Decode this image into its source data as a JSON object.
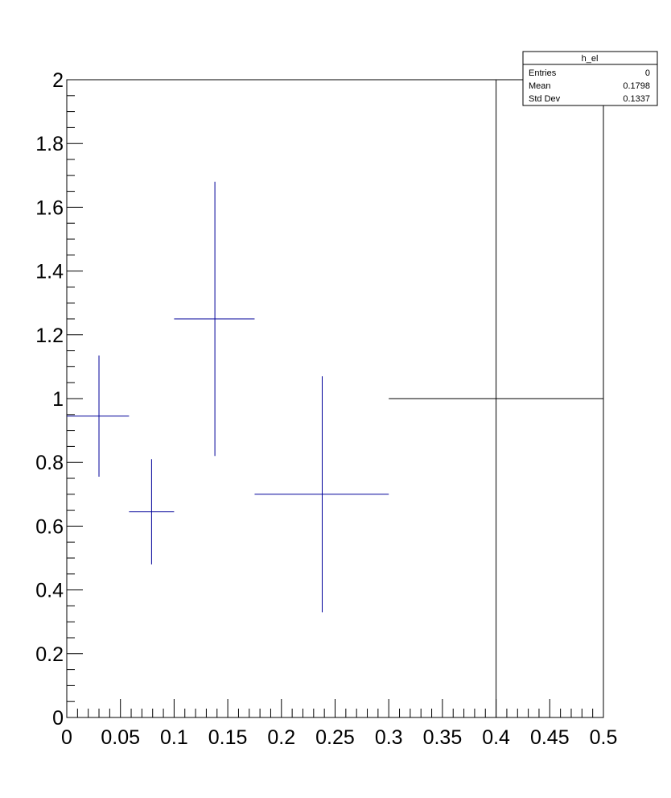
{
  "stats_box": {
    "title": "h_el",
    "rows": [
      {
        "label": "Entries",
        "value": "0"
      },
      {
        "label": "Mean",
        "value": "0.1798"
      },
      {
        "label": "Std Dev",
        "value": "0.1337"
      }
    ]
  },
  "chart_data": {
    "type": "scatter",
    "title": "",
    "xlabel": "",
    "ylabel": "",
    "xlim": [
      0,
      0.5
    ],
    "ylim": [
      0,
      2
    ],
    "grid": false,
    "x_tick_labels": [
      "0",
      "0.05",
      "0.1",
      "0.15",
      "0.2",
      "0.25",
      "0.3",
      "0.35",
      "0.4",
      "0.45",
      "0.5"
    ],
    "y_tick_labels": [
      "0",
      "0.2",
      "0.4",
      "0.6",
      "0.8",
      "1",
      "1.2",
      "1.4",
      "1.6",
      "1.8",
      "2"
    ],
    "x_ticks": [
      0,
      0.05,
      0.1,
      0.15,
      0.2,
      0.25,
      0.3,
      0.35,
      0.4,
      0.45,
      0.5
    ],
    "y_ticks": [
      0,
      0.2,
      0.4,
      0.6,
      0.8,
      1.0,
      1.2,
      1.4,
      1.6,
      1.8,
      2.0
    ],
    "series_color": "#000099",
    "points": [
      {
        "x": 0.03,
        "x_low": 0.0,
        "x_high": 0.058,
        "y": 0.945,
        "y_low": 0.755,
        "y_high": 1.135
      },
      {
        "x": 0.079,
        "x_low": 0.058,
        "x_high": 0.1,
        "y": 0.645,
        "y_low": 0.48,
        "y_high": 0.81
      },
      {
        "x": 0.138,
        "x_low": 0.1,
        "x_high": 0.175,
        "y": 1.25,
        "y_low": 0.82,
        "y_high": 1.68
      },
      {
        "x": 0.238,
        "x_low": 0.175,
        "x_high": 0.3,
        "y": 0.7,
        "y_low": 0.33,
        "y_high": 1.07
      },
      {
        "x": 0.4,
        "x_low": 0.3,
        "x_high": 0.5,
        "y": 1.0,
        "y_low": 0.0,
        "y_high": 2.0
      }
    ]
  }
}
